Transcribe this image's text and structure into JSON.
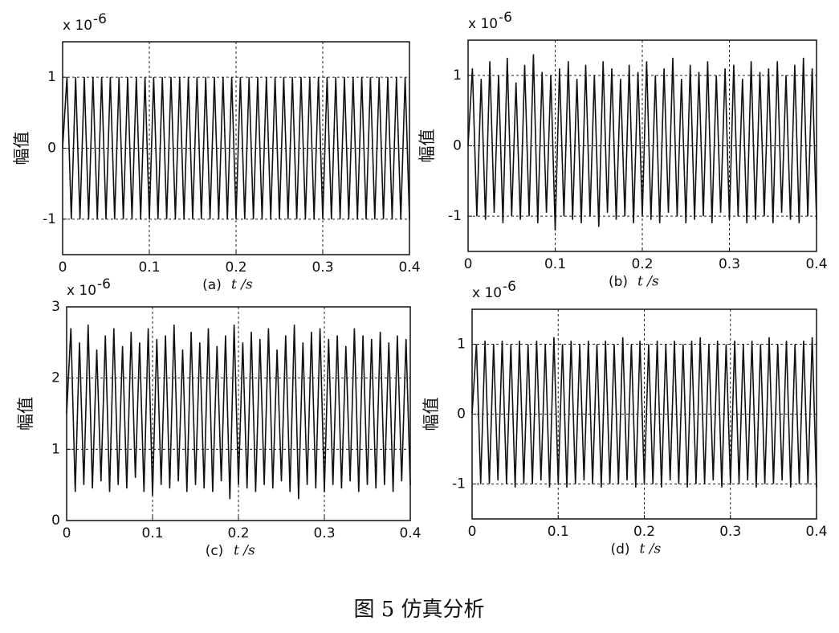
{
  "chart_data": [
    {
      "type": "line",
      "panel": "(a)",
      "xlabel": "t /s",
      "ylabel": "幅值",
      "multiplier": "x 10",
      "exponent": "-6",
      "color": "#111",
      "grid": true,
      "xlim": [
        0,
        0.4
      ],
      "xticks": [
        0,
        0.1,
        0.2,
        0.3,
        0.4
      ],
      "ylim": [
        -1.5,
        1.5
      ],
      "yticks": [
        -1,
        0,
        1
      ],
      "x": [
        0,
        0.005,
        0.01,
        0.015,
        0.02,
        0.025,
        0.03,
        0.035,
        0.04,
        0.045,
        0.05,
        0.055,
        0.06,
        0.065,
        0.07,
        0.075,
        0.08,
        0.085,
        0.09,
        0.095,
        0.1,
        0.105,
        0.11,
        0.115,
        0.12,
        0.125,
        0.13,
        0.135,
        0.14,
        0.145,
        0.15,
        0.155,
        0.16,
        0.165,
        0.17,
        0.175,
        0.18,
        0.185,
        0.19,
        0.195,
        0.2,
        0.205,
        0.21,
        0.215,
        0.22,
        0.225,
        0.23,
        0.235,
        0.24,
        0.245,
        0.25,
        0.255,
        0.26,
        0.265,
        0.27,
        0.275,
        0.28,
        0.285,
        0.29,
        0.295,
        0.3,
        0.305,
        0.31,
        0.315,
        0.32,
        0.325,
        0.33,
        0.335,
        0.34,
        0.345,
        0.35,
        0.355,
        0.36,
        0.365,
        0.37,
        0.375,
        0.38,
        0.385,
        0.39,
        0.395,
        0.4
      ],
      "values": [
        0,
        1,
        -1,
        1,
        -1,
        1,
        -1,
        1,
        -1,
        1,
        -1,
        1,
        -1,
        1,
        -1,
        1,
        -1,
        1,
        -1,
        1,
        -1,
        1,
        -1,
        1,
        -1,
        1,
        -1,
        1,
        -1,
        1,
        -1,
        1,
        -1,
        1,
        -1,
        1,
        -1,
        1,
        -1,
        1,
        -1,
        1,
        -1,
        1,
        -1,
        1,
        -1,
        1,
        -1,
        1,
        -1,
        1,
        -1,
        1,
        -1,
        1,
        -1,
        1,
        -1,
        1,
        -1,
        1,
        -1,
        1,
        -1,
        1,
        -1,
        1,
        -1,
        1,
        -1,
        1,
        -1,
        1,
        -1,
        1,
        -1,
        1,
        -1,
        1,
        -1
      ]
    },
    {
      "type": "line",
      "panel": "(b)",
      "xlabel": "t /s",
      "ylabel": "幅值",
      "multiplier": "x 10",
      "exponent": "-6",
      "color": "#111",
      "grid": true,
      "xlim": [
        0,
        0.4
      ],
      "xticks": [
        0,
        0.1,
        0.2,
        0.3,
        0.4
      ],
      "ylim": [
        -1.5,
        1.5
      ],
      "yticks": [
        -1,
        0,
        1
      ],
      "x": [
        0,
        0.005,
        0.01,
        0.015,
        0.02,
        0.025,
        0.03,
        0.035,
        0.04,
        0.045,
        0.05,
        0.055,
        0.06,
        0.065,
        0.07,
        0.075,
        0.08,
        0.085,
        0.09,
        0.095,
        0.1,
        0.105,
        0.11,
        0.115,
        0.12,
        0.125,
        0.13,
        0.135,
        0.14,
        0.145,
        0.15,
        0.155,
        0.16,
        0.165,
        0.17,
        0.175,
        0.18,
        0.185,
        0.19,
        0.195,
        0.2,
        0.205,
        0.21,
        0.215,
        0.22,
        0.225,
        0.23,
        0.235,
        0.24,
        0.245,
        0.25,
        0.255,
        0.26,
        0.265,
        0.27,
        0.275,
        0.28,
        0.285,
        0.29,
        0.295,
        0.3,
        0.305,
        0.31,
        0.315,
        0.32,
        0.325,
        0.33,
        0.335,
        0.34,
        0.345,
        0.35,
        0.355,
        0.36,
        0.365,
        0.37,
        0.375,
        0.38,
        0.385,
        0.39,
        0.395,
        0.4
      ],
      "values": [
        0,
        1.1,
        -1,
        0.95,
        -1.05,
        1.2,
        -0.95,
        1.0,
        -1.1,
        1.25,
        -1.0,
        0.9,
        -1.05,
        1.15,
        -1.0,
        1.3,
        -1.1,
        1.05,
        -0.95,
        1.0,
        -1.2,
        1.1,
        -1.0,
        1.2,
        -1.05,
        0.95,
        -1.1,
        1.15,
        -1.0,
        1.0,
        -1.15,
        1.2,
        -0.95,
        1.1,
        -1.05,
        0.95,
        -1.0,
        1.15,
        -1.1,
        1.05,
        -1.0,
        1.2,
        -1.05,
        1.0,
        -1.1,
        1.1,
        -0.95,
        1.25,
        -1.0,
        0.95,
        -1.1,
        1.15,
        -1.05,
        1.05,
        -1.0,
        1.2,
        -1.1,
        1.0,
        -0.95,
        1.1,
        -1.05,
        1.15,
        -1.0,
        0.95,
        -1.1,
        1.2,
        -1.05,
        1.05,
        -1.0,
        1.1,
        -1.1,
        1.2,
        -0.95,
        1.0,
        -1.05,
        1.15,
        -1.1,
        1.25,
        -1.0,
        1.1,
        -1.05
      ]
    },
    {
      "type": "line",
      "panel": "(c)",
      "xlabel": "t /s",
      "ylabel": "幅值",
      "multiplier": "x 10",
      "exponent": "-6",
      "color": "#111",
      "grid": true,
      "xlim": [
        0,
        0.4
      ],
      "xticks": [
        0,
        0.1,
        0.2,
        0.3,
        0.4
      ],
      "ylim": [
        0,
        3
      ],
      "yticks": [
        0,
        1,
        2,
        3
      ],
      "x": [
        0,
        0.005,
        0.01,
        0.015,
        0.02,
        0.025,
        0.03,
        0.035,
        0.04,
        0.045,
        0.05,
        0.055,
        0.06,
        0.065,
        0.07,
        0.075,
        0.08,
        0.085,
        0.09,
        0.095,
        0.1,
        0.105,
        0.11,
        0.115,
        0.12,
        0.125,
        0.13,
        0.135,
        0.14,
        0.145,
        0.15,
        0.155,
        0.16,
        0.165,
        0.17,
        0.175,
        0.18,
        0.185,
        0.19,
        0.195,
        0.2,
        0.205,
        0.21,
        0.215,
        0.22,
        0.225,
        0.23,
        0.235,
        0.24,
        0.245,
        0.25,
        0.255,
        0.26,
        0.265,
        0.27,
        0.275,
        0.28,
        0.285,
        0.29,
        0.295,
        0.3,
        0.305,
        0.31,
        0.315,
        0.32,
        0.325,
        0.33,
        0.335,
        0.34,
        0.345,
        0.35,
        0.355,
        0.36,
        0.365,
        0.37,
        0.375,
        0.38,
        0.385,
        0.39,
        0.395,
        0.4
      ],
      "values": [
        1.5,
        2.7,
        0.4,
        2.5,
        0.5,
        2.75,
        0.45,
        2.4,
        0.55,
        2.6,
        0.4,
        2.7,
        0.5,
        2.45,
        0.45,
        2.65,
        0.6,
        2.5,
        0.4,
        2.7,
        0.35,
        2.55,
        0.5,
        2.6,
        0.45,
        2.75,
        0.55,
        2.4,
        0.4,
        2.65,
        0.5,
        2.5,
        0.45,
        2.7,
        0.4,
        2.45,
        0.55,
        2.6,
        0.3,
        2.75,
        0.5,
        2.5,
        0.45,
        2.65,
        0.4,
        2.55,
        0.5,
        2.7,
        0.45,
        2.4,
        0.55,
        2.6,
        0.4,
        2.75,
        0.3,
        2.5,
        0.5,
        2.65,
        0.45,
        2.7,
        0.4,
        2.55,
        0.5,
        2.6,
        0.45,
        2.45,
        0.55,
        2.7,
        0.4,
        2.6,
        0.5,
        2.55,
        0.45,
        2.65,
        0.5,
        2.5,
        0.4,
        2.6,
        0.55,
        2.55,
        0.5
      ]
    },
    {
      "type": "line",
      "panel": "(d)",
      "xlabel": "t /s",
      "ylabel": "幅值",
      "multiplier": "x 10",
      "exponent": "-6",
      "color": "#111",
      "grid": true,
      "xlim": [
        0,
        0.4
      ],
      "xticks": [
        0,
        0.1,
        0.2,
        0.3,
        0.4
      ],
      "ylim": [
        -1.5,
        1.5
      ],
      "yticks": [
        -1,
        0,
        1
      ],
      "x": [
        0,
        0.005,
        0.01,
        0.015,
        0.02,
        0.025,
        0.03,
        0.035,
        0.04,
        0.045,
        0.05,
        0.055,
        0.06,
        0.065,
        0.07,
        0.075,
        0.08,
        0.085,
        0.09,
        0.095,
        0.1,
        0.105,
        0.11,
        0.115,
        0.12,
        0.125,
        0.13,
        0.135,
        0.14,
        0.145,
        0.15,
        0.155,
        0.16,
        0.165,
        0.17,
        0.175,
        0.18,
        0.185,
        0.19,
        0.195,
        0.2,
        0.205,
        0.21,
        0.215,
        0.22,
        0.225,
        0.23,
        0.235,
        0.24,
        0.245,
        0.25,
        0.255,
        0.26,
        0.265,
        0.27,
        0.275,
        0.28,
        0.285,
        0.29,
        0.295,
        0.3,
        0.305,
        0.31,
        0.315,
        0.32,
        0.325,
        0.33,
        0.335,
        0.34,
        0.345,
        0.35,
        0.355,
        0.36,
        0.365,
        0.37,
        0.375,
        0.38,
        0.385,
        0.39,
        0.395,
        0.4
      ],
      "values": [
        0,
        1.0,
        -1.0,
        1.05,
        -1.0,
        1.0,
        -0.95,
        1.05,
        -1.0,
        1.0,
        -1.05,
        1.05,
        -1.0,
        1.0,
        -1.0,
        1.05,
        -0.95,
        1.0,
        -1.05,
        1.1,
        -1.0,
        1.0,
        -1.05,
        1.05,
        -1.0,
        1.0,
        -0.95,
        1.05,
        -1.0,
        1.0,
        -1.05,
        1.05,
        -1.0,
        1.0,
        -1.0,
        1.1,
        -0.95,
        1.0,
        -1.05,
        1.05,
        -1.0,
        1.0,
        -1.0,
        1.05,
        -1.05,
        1.0,
        -0.95,
        1.05,
        -1.0,
        1.0,
        -1.05,
        1.05,
        -1.0,
        1.1,
        -1.0,
        1.0,
        -0.95,
        1.05,
        -1.05,
        1.0,
        -1.0,
        1.05,
        -1.0,
        1.0,
        -0.95,
        1.05,
        -1.05,
        1.0,
        -1.0,
        1.1,
        -1.0,
        1.0,
        -0.95,
        1.05,
        -1.05,
        1.0,
        -1.0,
        1.05,
        -1.0,
        1.1,
        -1.05
      ]
    }
  ],
  "caption": "图 5   仿真分析"
}
